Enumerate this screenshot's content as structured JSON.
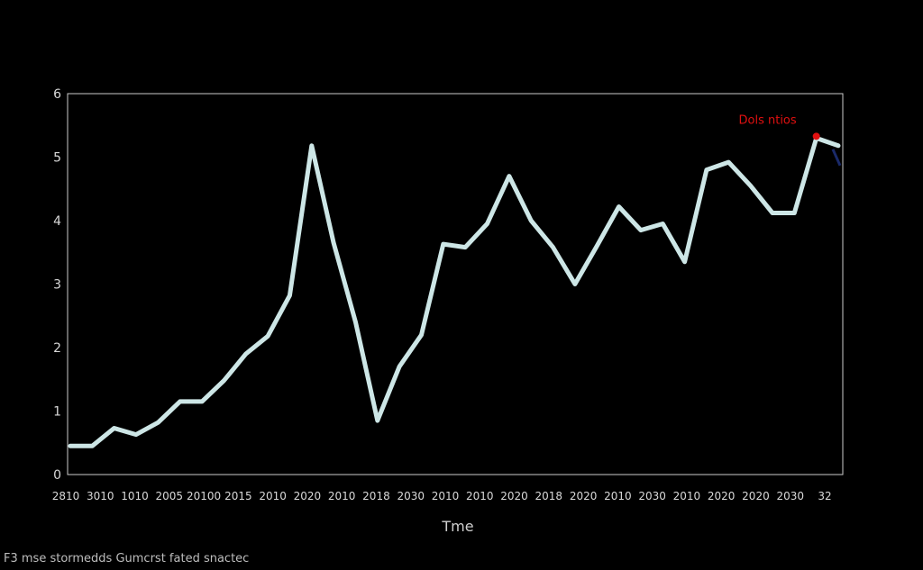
{
  "chart_data": {
    "type": "line",
    "title": "",
    "xlabel": "Tme",
    "ylabel": "",
    "ylim": [
      0,
      6
    ],
    "yticks": [
      0,
      1,
      2,
      3,
      4,
      5,
      6
    ],
    "grid": false,
    "legend": "none",
    "x_tick_labels": [
      "2810",
      "3010",
      "1010",
      "2005",
      "20100",
      "2015",
      "2010",
      "2020",
      "2010",
      "2018",
      "2030",
      "2010",
      "2010",
      "2020",
      "2018",
      "2020",
      "2010",
      "2030",
      "2010",
      "2020",
      "2020",
      "2030",
      "32"
    ],
    "series": [
      {
        "color": "#cde6e6",
        "values": [
          0.45,
          0.45,
          0.73,
          0.63,
          0.82,
          1.15,
          1.15,
          1.48,
          1.9,
          2.18,
          2.82,
          5.18,
          3.65,
          2.4,
          0.85,
          1.7,
          2.2,
          3.63,
          3.58,
          3.95,
          4.7,
          4.0,
          3.58,
          3.0,
          3.6,
          4.22,
          3.85,
          3.95,
          3.35,
          4.8,
          4.92,
          4.55,
          4.12,
          4.12,
          5.3,
          5.18
        ]
      }
    ],
    "annotation": {
      "text": "Dols ntios",
      "color": "#e01010",
      "at_index": 34
    }
  },
  "footer": {
    "text": "F3 mse stormedds Gumcrst fated snactec"
  }
}
